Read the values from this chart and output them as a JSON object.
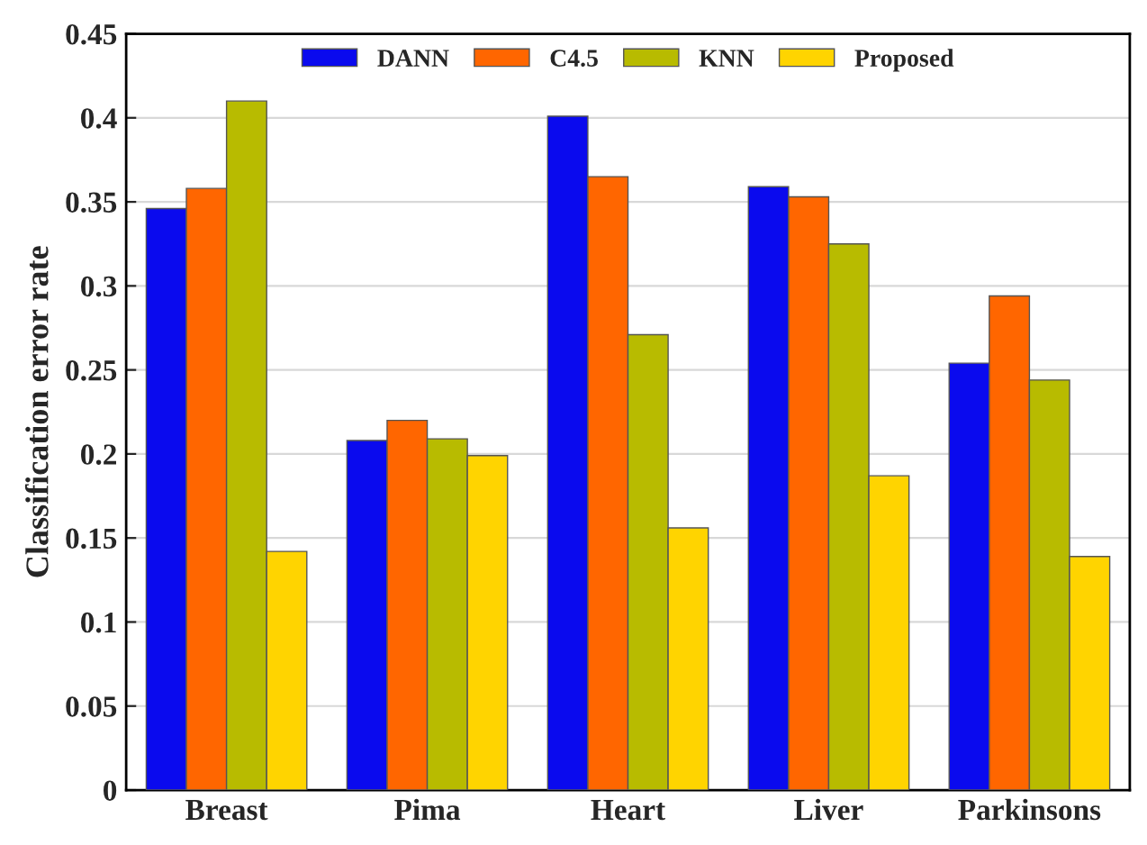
{
  "chart_data": {
    "type": "bar",
    "ylabel": "Classification error rate",
    "categories": [
      "Breast",
      "Pima",
      "Heart",
      "Liver",
      "Parkinsons"
    ],
    "series": [
      {
        "name": "DANN",
        "color": "#0a0aee",
        "values": [
          0.346,
          0.208,
          0.401,
          0.359,
          0.254
        ]
      },
      {
        "name": "C4.5",
        "color": "#ff6600",
        "values": [
          0.358,
          0.22,
          0.365,
          0.353,
          0.294
        ]
      },
      {
        "name": "KNN",
        "color": "#b8bb00",
        "values": [
          0.41,
          0.209,
          0.271,
          0.325,
          0.244
        ]
      },
      {
        "name": "Proposed",
        "color": "#ffd400",
        "values": [
          0.142,
          0.199,
          0.156,
          0.187,
          0.139
        ]
      }
    ],
    "ylim": [
      0,
      0.45
    ],
    "yticks": [
      0,
      0.05,
      0.1,
      0.15,
      0.2,
      0.25,
      0.3,
      0.35,
      0.4,
      0.45
    ],
    "grid": "y",
    "legend": "top"
  }
}
